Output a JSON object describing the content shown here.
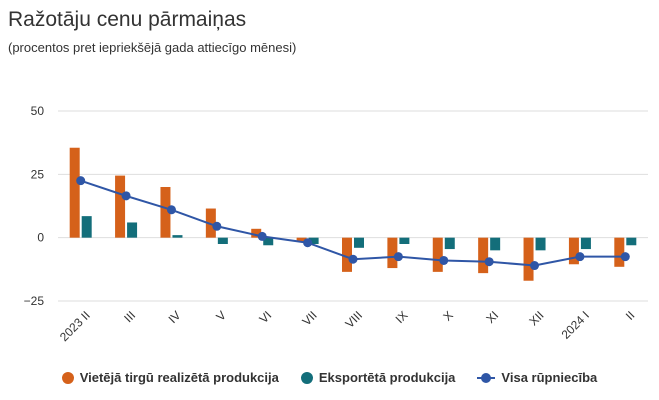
{
  "chart_data": {
    "type": "bar",
    "title": "Ražotāju cenu pārmaiņas",
    "subtitle": "(procentos pret iepriekšējā gada attiecīgo mēnesi)",
    "xlabel": "",
    "ylabel": "",
    "ylim": [
      -25,
      50
    ],
    "yticks": [
      -25,
      0,
      25,
      50
    ],
    "yticklabels": [
      "−25",
      "0",
      "25",
      "50"
    ],
    "categories": [
      "2023 II",
      "III",
      "IV",
      "V",
      "VI",
      "VII",
      "VIII",
      "IX",
      "X",
      "XI",
      "XII",
      "2024 I",
      "II"
    ],
    "series": [
      {
        "name": "Vietējā tirgū realizētā produkcija",
        "kind": "bar",
        "color": "#d5611a",
        "values": [
          35.5,
          24.5,
          20,
          11.5,
          3.5,
          -1.5,
          -13.5,
          -12,
          -13.5,
          -14,
          -17,
          -10.5,
          -11.5
        ]
      },
      {
        "name": "Eksportētā produkcija",
        "kind": "bar",
        "color": "#136e7a",
        "values": [
          8.5,
          6,
          1,
          -2.5,
          -3,
          -2.5,
          -4,
          -2.5,
          -4.5,
          -5,
          -5,
          -4.5,
          -3
        ]
      },
      {
        "name": "Visa rūpniecība",
        "kind": "line",
        "color": "#2f56a6",
        "values": [
          22.5,
          16.5,
          11,
          4.5,
          0.5,
          -2,
          -8.5,
          -7.5,
          -9,
          -9.5,
          -11,
          -7.5,
          -7.5
        ]
      }
    ],
    "legend": "bottom",
    "grid": true
  }
}
